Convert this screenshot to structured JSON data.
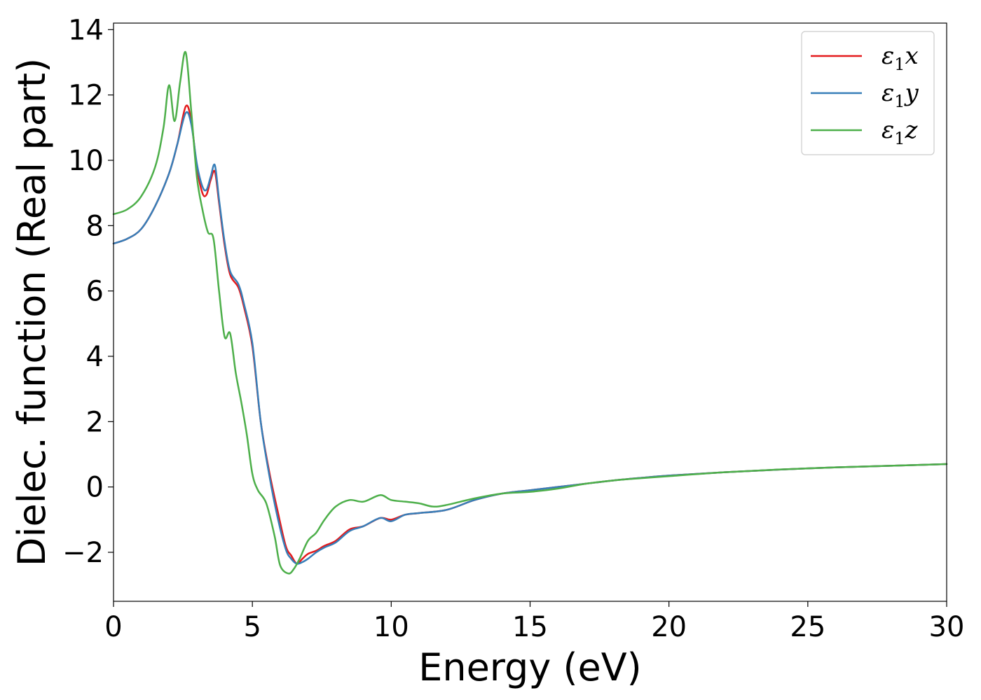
{
  "chart_data": {
    "type": "line",
    "title": "",
    "xlabel": "Energy (eV)",
    "ylabel": "Dielec. function (Real part)",
    "xlim": [
      0,
      30
    ],
    "ylim": [
      -3.5,
      14.2
    ],
    "xticks": [
      0,
      5,
      10,
      15,
      20,
      25,
      30
    ],
    "xtick_labels": [
      "0",
      "5",
      "10",
      "15",
      "20",
      "25",
      "30"
    ],
    "yticks": [
      -2,
      0,
      2,
      4,
      6,
      8,
      10,
      12,
      14
    ],
    "ytick_labels": [
      "−2",
      "0",
      "2",
      "4",
      "6",
      "8",
      "10",
      "12",
      "14"
    ],
    "grid": false,
    "legend_position": "top-right",
    "series": [
      {
        "name": "ε1x",
        "symbol": "ε",
        "subscript": "1",
        "component": "x",
        "color": "#e41a1c",
        "x": [
          0,
          0.5,
          1.0,
          1.5,
          2.0,
          2.3,
          2.6,
          2.8,
          3.0,
          3.2,
          3.35,
          3.5,
          3.65,
          3.8,
          4.0,
          4.2,
          4.5,
          4.7,
          5.0,
          5.3,
          5.6,
          5.9,
          6.2,
          6.4,
          6.6,
          6.8,
          7.0,
          7.3,
          7.6,
          8.0,
          8.5,
          9.0,
          9.6,
          10.0,
          10.5,
          11.0,
          12.0,
          13.0,
          14.0,
          15.0,
          16.0,
          17.0,
          18.0,
          19.0,
          20.0,
          22.0,
          25.0,
          28.0,
          30.0
        ],
        "y": [
          7.45,
          7.6,
          7.9,
          8.6,
          9.6,
          10.5,
          11.65,
          11.2,
          9.8,
          9.0,
          8.95,
          9.4,
          9.65,
          8.7,
          7.4,
          6.5,
          6.1,
          5.5,
          4.3,
          2.0,
          0.5,
          -0.7,
          -1.8,
          -2.1,
          -2.35,
          -2.2,
          -2.05,
          -1.95,
          -1.8,
          -1.65,
          -1.3,
          -1.2,
          -0.95,
          -1.0,
          -0.85,
          -0.8,
          -0.7,
          -0.4,
          -0.2,
          -0.1,
          0.0,
          0.1,
          0.2,
          0.28,
          0.35,
          0.45,
          0.57,
          0.65,
          0.7
        ]
      },
      {
        "name": "ε1y",
        "symbol": "ε",
        "subscript": "1",
        "component": "y",
        "color": "#377eb8",
        "x": [
          0,
          0.5,
          1.0,
          1.5,
          2.0,
          2.3,
          2.6,
          2.8,
          3.0,
          3.2,
          3.35,
          3.5,
          3.65,
          3.8,
          4.0,
          4.2,
          4.5,
          4.7,
          5.0,
          5.3,
          5.6,
          5.9,
          6.2,
          6.4,
          6.6,
          6.8,
          7.0,
          7.3,
          7.6,
          8.0,
          8.5,
          9.0,
          9.6,
          10.0,
          10.5,
          11.0,
          12.0,
          13.0,
          14.0,
          15.0,
          16.0,
          17.0,
          18.0,
          19.0,
          20.0,
          22.0,
          25.0,
          28.0,
          30.0
        ],
        "y": [
          7.45,
          7.6,
          7.9,
          8.6,
          9.6,
          10.5,
          11.45,
          11.1,
          9.9,
          9.2,
          9.1,
          9.5,
          9.85,
          8.8,
          7.5,
          6.6,
          6.2,
          5.6,
          4.4,
          2.0,
          0.4,
          -0.9,
          -1.9,
          -2.2,
          -2.35,
          -2.3,
          -2.2,
          -2.0,
          -1.85,
          -1.7,
          -1.35,
          -1.2,
          -0.95,
          -1.05,
          -0.85,
          -0.8,
          -0.7,
          -0.4,
          -0.2,
          -0.1,
          0.0,
          0.1,
          0.2,
          0.28,
          0.35,
          0.45,
          0.57,
          0.65,
          0.7
        ]
      },
      {
        "name": "ε1z",
        "symbol": "ε",
        "subscript": "1",
        "component": "z",
        "color": "#4daf4a",
        "x": [
          0,
          0.5,
          1.0,
          1.5,
          1.8,
          2.0,
          2.2,
          2.4,
          2.6,
          2.8,
          3.0,
          3.2,
          3.4,
          3.6,
          3.8,
          4.0,
          4.2,
          4.4,
          4.6,
          4.8,
          5.0,
          5.2,
          5.5,
          5.8,
          6.0,
          6.3,
          6.5,
          6.7,
          7.0,
          7.3,
          7.6,
          8.0,
          8.5,
          9.0,
          9.6,
          10.0,
          10.5,
          11.0,
          11.5,
          12.0,
          13.0,
          14.0,
          15.0,
          16.0,
          17.0,
          18.0,
          19.0,
          20.0,
          22.0,
          25.0,
          28.0,
          30.0
        ],
        "y": [
          8.35,
          8.5,
          8.9,
          9.8,
          11.0,
          12.3,
          11.2,
          12.4,
          13.3,
          11.5,
          9.5,
          8.5,
          7.8,
          7.6,
          6.0,
          4.6,
          4.7,
          3.5,
          2.6,
          1.6,
          0.4,
          -0.1,
          -0.5,
          -1.5,
          -2.4,
          -2.65,
          -2.5,
          -2.2,
          -1.65,
          -1.4,
          -1.0,
          -0.6,
          -0.4,
          -0.45,
          -0.25,
          -0.4,
          -0.45,
          -0.5,
          -0.6,
          -0.55,
          -0.35,
          -0.2,
          -0.15,
          -0.05,
          0.1,
          0.2,
          0.27,
          0.33,
          0.45,
          0.57,
          0.65,
          0.7
        ]
      }
    ]
  }
}
